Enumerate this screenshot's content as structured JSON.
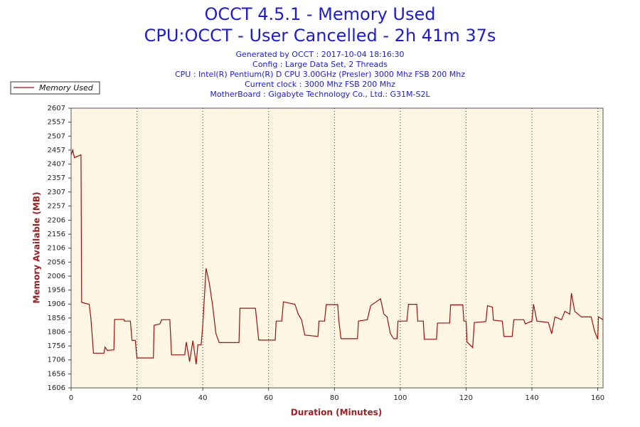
{
  "chart_data": {
    "type": "line",
    "title": "OCCT 4.5.1 - Memory Used",
    "subtitle": "CPU:OCCT - User Cancelled - 2h 41m 37s",
    "annotations": [
      "Generated by OCCT : 2017-10-04 18:16:30",
      "Config : Large Data Set, 2 Threads",
      "CPU : Intel(R) Pentium(R) D CPU 3.00GHz (Presler) 3000 Mhz FSB 200 Mhz",
      "Current clock : 3000 Mhz FSB 200 Mhz",
      "MotherBoard : Gigabyte Technology Co., Ltd.: G31M-S2L"
    ],
    "x_label": "Duration (Minutes)",
    "y_label": "Memory Available (MB)",
    "x": [
      0,
      0.5,
      1,
      3,
      3.2,
      5.5,
      6,
      6.8,
      10,
      10.3,
      11,
      13,
      13.2,
      16,
      16.2,
      18,
      18.5,
      19.5,
      20,
      25,
      25.2,
      27,
      27.5,
      30,
      30.5,
      34.5,
      35,
      36,
      37,
      38,
      38.5,
      39.5,
      40,
      41,
      42,
      43,
      44,
      45,
      51,
      51.3,
      56,
      56.3,
      57,
      62,
      62.3,
      64,
      64.5,
      68,
      69,
      70,
      71,
      75,
      75.3,
      77,
      77.5,
      81,
      81.3,
      82,
      87,
      87.3,
      90,
      91,
      94,
      95,
      96,
      97,
      98,
      99,
      99.3,
      102,
      102.5,
      105,
      105.3,
      107,
      107.3,
      111,
      111.3,
      115,
      115.3,
      119,
      119.3,
      120,
      120.3,
      122,
      122.5,
      126,
      126.5,
      128,
      128.3,
      131,
      131.5,
      134,
      134.5,
      137.5,
      138,
      140,
      140.5,
      141.5,
      145,
      146,
      147,
      149,
      150,
      151.5,
      152,
      153,
      155,
      158,
      159,
      160,
      160.2,
      161.6
    ],
    "series": [
      {
        "name": "Memory Used",
        "color": "#9b1111",
        "values": [
          2440,
          2457,
          2430,
          2440,
          1912,
          1905,
          1856,
          1730,
          1730,
          1752,
          1740,
          1742,
          1851,
          1851,
          1845,
          1845,
          1776,
          1776,
          1713,
          1713,
          1830,
          1835,
          1850,
          1850,
          1724,
          1724,
          1770,
          1700,
          1775,
          1690,
          1760,
          1760,
          1830,
          2034,
          1980,
          1900,
          1800,
          1768,
          1768,
          1891,
          1891,
          1856,
          1777,
          1777,
          1845,
          1845,
          1914,
          1905,
          1870,
          1850,
          1795,
          1790,
          1845,
          1845,
          1904,
          1904,
          1850,
          1782,
          1782,
          1845,
          1850,
          1900,
          1925,
          1870,
          1860,
          1800,
          1782,
          1782,
          1845,
          1845,
          1905,
          1905,
          1845,
          1845,
          1780,
          1780,
          1838,
          1838,
          1903,
          1903,
          1845,
          1845,
          1770,
          1750,
          1840,
          1843,
          1900,
          1895,
          1848,
          1845,
          1790,
          1790,
          1850,
          1850,
          1835,
          1845,
          1905,
          1845,
          1840,
          1800,
          1860,
          1850,
          1880,
          1870,
          1945,
          1880,
          1860,
          1860,
          1810,
          1780,
          1860,
          1850
        ]
      }
    ],
    "xlim": [
      0,
      161.6
    ],
    "xticks": [
      0,
      20,
      40,
      60,
      80,
      100,
      120,
      140,
      160
    ],
    "ylim": [
      1606,
      2607
    ],
    "yticks": [
      1606,
      1656,
      1706,
      1756,
      1806,
      1856,
      1906,
      1956,
      2006,
      2056,
      2106,
      2156,
      2206,
      2257,
      2307,
      2357,
      2407,
      2457,
      2507,
      2557,
      2607
    ],
    "grid": "x",
    "legend": "upper left"
  }
}
